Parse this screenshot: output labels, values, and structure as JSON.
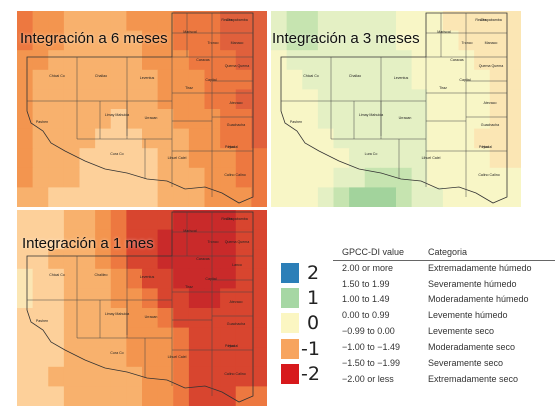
{
  "panels": [
    {
      "title": "Integración a 6 meses",
      "districts": [
        "Chicai Co",
        "Challao",
        "Leventus",
        "Tiraz",
        "Capital",
        "Mariscal",
        "Tronco",
        "Caracas",
        "Reales",
        "Chapabamba",
        "Manaco",
        "Quema Quema",
        "Atevaco",
        "Guachacha",
        "Poyco",
        "Calino Calino",
        "Pashen",
        "Limay Mahuida",
        "Urracan",
        "Cura Co",
        "Lihuel Calel",
        "Huclal"
      ],
      "palette": [
        "#fbe6b4",
        "#fdd09a",
        "#f8b16d",
        "#f3954f",
        "#ed7840",
        "#e0603c",
        "#d8452f"
      ],
      "grid_levels": [
        [
          4,
          3,
          3,
          2,
          2,
          2,
          2,
          3,
          3,
          3,
          4,
          4,
          4,
          5,
          5,
          5
        ],
        [
          4,
          3,
          3,
          2,
          2,
          2,
          2,
          2,
          3,
          3,
          4,
          4,
          4,
          5,
          5,
          5
        ],
        [
          3,
          3,
          2,
          2,
          2,
          2,
          2,
          2,
          3,
          3,
          3,
          4,
          4,
          4,
          5,
          5
        ],
        [
          3,
          2,
          2,
          2,
          2,
          2,
          2,
          2,
          2,
          3,
          3,
          3,
          4,
          4,
          4,
          5
        ],
        [
          3,
          2,
          2,
          2,
          2,
          2,
          2,
          2,
          2,
          3,
          3,
          3,
          4,
          4,
          5,
          5
        ],
        [
          3,
          2,
          2,
          2,
          2,
          2,
          1,
          2,
          2,
          2,
          3,
          3,
          3,
          4,
          4,
          5
        ],
        [
          3,
          2,
          2,
          2,
          2,
          1,
          1,
          1,
          2,
          2,
          2,
          3,
          3,
          4,
          4,
          5
        ],
        [
          3,
          2,
          2,
          2,
          1,
          1,
          1,
          1,
          1,
          2,
          2,
          3,
          3,
          3,
          4,
          4
        ],
        [
          3,
          2,
          2,
          2,
          1,
          1,
          1,
          1,
          1,
          2,
          2,
          2,
          3,
          3,
          4,
          4
        ],
        [
          2,
          2,
          1,
          1,
          1,
          1,
          1,
          1,
          1,
          2,
          2,
          2,
          3,
          3,
          3,
          4
        ]
      ]
    },
    {
      "title": "Integración a 3 meses",
      "districts": [
        "Chicai Co",
        "Challao",
        "Leventus",
        "Tiraz",
        "Capital",
        "Mariscal",
        "Tronco",
        "Caracas",
        "Reales",
        "Chapabamba",
        "Manaco",
        "Quema Quema",
        "Atevaco",
        "Guachacha",
        "Poyco",
        "Calino Calino",
        "Pashen",
        "Limay Mahuida",
        "Urracan",
        "Lura Co",
        "Lihuel Calel",
        "Huclal"
      ],
      "palette": [
        "#a2d39c",
        "#c6e4b0",
        "#e4f0c4",
        "#f8f6c6",
        "#fbe6b4",
        "#fdd09a",
        "#f8b16d"
      ],
      "grid_levels": [
        [
          2,
          1,
          1,
          2,
          2,
          2,
          2,
          2,
          3,
          3,
          3,
          4,
          4,
          4,
          4,
          4
        ],
        [
          2,
          1,
          1,
          2,
          2,
          2,
          2,
          2,
          3,
          3,
          3,
          3,
          4,
          4,
          4,
          4
        ],
        [
          3,
          2,
          2,
          2,
          2,
          2,
          2,
          2,
          2,
          3,
          3,
          3,
          3,
          4,
          4,
          4
        ],
        [
          3,
          3,
          2,
          2,
          2,
          2,
          2,
          2,
          2,
          3,
          3,
          3,
          3,
          3,
          4,
          4
        ],
        [
          3,
          3,
          3,
          2,
          2,
          2,
          2,
          2,
          2,
          2,
          3,
          3,
          3,
          3,
          4,
          4
        ],
        [
          3,
          3,
          3,
          2,
          2,
          2,
          2,
          2,
          2,
          2,
          3,
          3,
          3,
          3,
          4,
          4
        ],
        [
          3,
          3,
          3,
          3,
          2,
          2,
          2,
          2,
          2,
          2,
          3,
          3,
          3,
          4,
          4,
          4
        ],
        [
          3,
          3,
          3,
          3,
          3,
          2,
          2,
          2,
          2,
          2,
          3,
          3,
          3,
          3,
          4,
          4
        ],
        [
          3,
          3,
          3,
          3,
          2,
          2,
          1,
          1,
          1,
          2,
          3,
          3,
          3,
          3,
          3,
          3
        ],
        [
          3,
          3,
          3,
          2,
          1,
          0,
          0,
          0,
          1,
          2,
          2,
          3,
          3,
          3,
          3,
          3
        ]
      ]
    },
    {
      "title": "Integración a 1 mes",
      "districts": [
        "Chicai Co",
        "Chalileo",
        "Leventus",
        "Tiraz",
        "Capital",
        "Mariscal",
        "Tronco",
        "Caracas",
        "Reales",
        "Chapabamba",
        "Quema Quema",
        "Lanco",
        "Atevaco",
        "Guachacha",
        "Poyco",
        "Calino Calino",
        "Pashen",
        "Limay Mahuida",
        "Urracan",
        "Cura Co",
        "Lihuel Calel",
        "Huclal"
      ],
      "palette": [
        "#c6e4b0",
        "#fbe6b4",
        "#fdd09a",
        "#f8b16d",
        "#f3954f",
        "#ed7840",
        "#d8452f",
        "#c92a2a"
      ],
      "grid_levels": [
        [
          2,
          2,
          2,
          3,
          3,
          4,
          5,
          6,
          6,
          6,
          7,
          7,
          7,
          7,
          6,
          6
        ],
        [
          2,
          2,
          2,
          3,
          3,
          4,
          5,
          6,
          6,
          7,
          7,
          7,
          7,
          7,
          6,
          6
        ],
        [
          2,
          2,
          3,
          3,
          3,
          4,
          5,
          6,
          6,
          7,
          7,
          7,
          7,
          7,
          6,
          6
        ],
        [
          1,
          2,
          2,
          3,
          3,
          3,
          4,
          5,
          6,
          6,
          7,
          7,
          7,
          7,
          6,
          6
        ],
        [
          1,
          2,
          2,
          3,
          3,
          3,
          4,
          4,
          5,
          6,
          6,
          7,
          7,
          6,
          6,
          6
        ],
        [
          2,
          2,
          2,
          3,
          3,
          3,
          3,
          4,
          4,
          5,
          6,
          6,
          6,
          6,
          6,
          6
        ],
        [
          2,
          2,
          2,
          3,
          3,
          3,
          3,
          4,
          4,
          4,
          5,
          6,
          6,
          6,
          6,
          6
        ],
        [
          2,
          2,
          2,
          3,
          3,
          3,
          3,
          4,
          4,
          4,
          5,
          6,
          6,
          6,
          6,
          6
        ],
        [
          2,
          2,
          3,
          3,
          3,
          3,
          3,
          3,
          4,
          4,
          5,
          6,
          6,
          6,
          6,
          6
        ],
        [
          2,
          2,
          2,
          3,
          3,
          3,
          3,
          3,
          4,
          4,
          5,
          6,
          6,
          6,
          5,
          5
        ]
      ]
    }
  ],
  "legend": {
    "col_value": "GPCC-DI value",
    "col_category": "Categoria",
    "scale": [
      {
        "label": "2",
        "color": "#2c7fb8"
      },
      {
        "label": "1",
        "color": "#a6d7a4"
      },
      {
        "label": "0",
        "color": "#fbf6c2"
      },
      {
        "label": "-1",
        "color": "#f7a45e"
      },
      {
        "label": "-2",
        "color": "#d7191c"
      }
    ],
    "rows": [
      {
        "range": "2.00 or more",
        "category": "Extremadamente húmedo"
      },
      {
        "range": "1.50 to 1.99",
        "category": "Severamente húmedo"
      },
      {
        "range": "1.00 to 1.49",
        "category": "Moderadamente húmedo"
      },
      {
        "range": "0.00 to 0.99",
        "category": "Levemente húmedo"
      },
      {
        "range": "−0.99 to 0.00",
        "category": "Levemente seco"
      },
      {
        "range": "−1.00 to −1.49",
        "category": "Moderadamente seco"
      },
      {
        "range": "−1.50 to −1.99",
        "category": "Severamente seco"
      },
      {
        "range": "−2.00 or less",
        "category": "Extremadamente seco"
      }
    ]
  }
}
